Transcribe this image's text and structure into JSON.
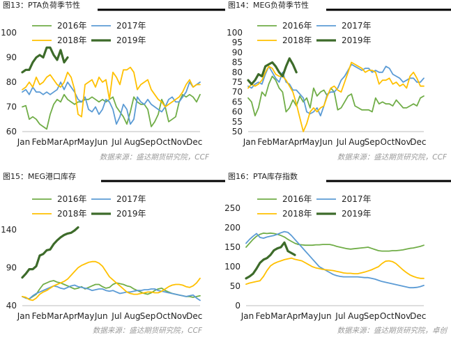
{
  "colors": {
    "y2016": "#70ad47",
    "y2017": "#5b9bd5",
    "y2018": "#ffc000",
    "y2019": "#3d6b2a"
  },
  "chart_data": [
    {
      "id": "pta-load",
      "type": "line",
      "title": "图13：PTA负荷季节性",
      "source": "数据来源：盛达期货研究院，CCF",
      "ylim": [
        60,
        100
      ],
      "yticks": [
        60,
        70,
        80,
        90,
        100
      ],
      "xticklabels": [
        "Jan",
        "Feb",
        "Mar",
        "Apr",
        "May",
        "Jun",
        "Jul",
        "Aug",
        "Sep",
        "Oct",
        "Nov",
        "Dec"
      ],
      "x_range": [
        1,
        52
      ],
      "legend": "top",
      "series": [
        {
          "name": "2016年",
          "color_key": "y2016",
          "width": 1.8,
          "values": [
            70,
            70.5,
            65,
            66,
            65,
            63,
            62,
            61,
            67,
            71,
            73,
            72,
            75,
            73,
            72,
            71,
            72,
            72,
            73,
            73,
            74,
            73,
            72,
            73,
            72,
            73,
            74,
            70,
            68,
            66,
            63,
            68,
            74,
            72,
            71,
            71,
            69,
            62,
            64,
            67,
            73,
            70,
            64,
            65,
            66,
            72,
            75,
            74,
            75,
            74,
            72,
            75
          ]
        },
        {
          "name": "2017年",
          "color_key": "y2017",
          "width": 1.8,
          "values": [
            76,
            77,
            75,
            78,
            76,
            76,
            75,
            76,
            75,
            76,
            77,
            80,
            77,
            80,
            78,
            76,
            73,
            72,
            74,
            69,
            68,
            70,
            67,
            69,
            73,
            72,
            69,
            63,
            66,
            71,
            69,
            63,
            65,
            74,
            72,
            71,
            73,
            71,
            70,
            69,
            68,
            70,
            73,
            74,
            72,
            72,
            74,
            76,
            80,
            78,
            79,
            80
          ]
        },
        {
          "name": "2018年",
          "color_key": "y2018",
          "width": 1.8,
          "values": [
            77,
            78,
            80,
            78,
            82,
            79,
            80,
            82,
            83,
            81,
            79,
            78,
            80,
            84,
            82,
            77,
            67,
            66,
            79,
            80,
            81,
            78,
            82,
            80,
            81,
            73,
            84,
            82,
            79,
            85,
            85,
            86,
            84,
            77,
            79,
            80,
            81,
            77,
            75,
            73,
            72,
            70,
            71,
            72,
            73,
            74,
            76,
            79,
            81,
            78,
            79,
            79
          ]
        },
        {
          "name": "2019年",
          "color_key": "y2019",
          "width": 3.2,
          "values": [
            84,
            85,
            85,
            88,
            90,
            91,
            90,
            94,
            94,
            91,
            89,
            93,
            88,
            90
          ]
        }
      ]
    },
    {
      "id": "meg-load",
      "type": "line",
      "title": "图14：MEG负荷季节性",
      "source": "数据来源：盛达期货研究院，CCF",
      "ylim": [
        50,
        100
      ],
      "yticks": [
        50,
        55,
        60,
        65,
        70,
        75,
        80,
        85,
        90,
        95,
        100
      ],
      "xticklabels": [
        "Jan",
        "Feb",
        "Mar",
        "Apr",
        "May",
        "Jun",
        "Jul",
        "Aug",
        "Sep",
        "Oct",
        "Nov",
        "Dec"
      ],
      "x_range": [
        1,
        52
      ],
      "legend": "top",
      "series": [
        {
          "name": "2016年",
          "color_key": "y2016",
          "width": 1.8,
          "values": [
            67,
            65,
            58,
            62,
            70,
            68,
            74,
            78,
            76,
            72,
            70,
            60,
            62,
            66,
            63,
            68,
            65,
            67,
            62,
            72,
            68,
            70,
            71,
            68,
            72,
            70,
            61,
            62,
            65,
            68,
            69,
            63,
            62,
            61,
            61,
            61,
            60,
            67,
            64,
            65,
            64,
            64,
            63,
            66,
            64,
            62,
            62,
            63,
            64,
            63,
            67,
            68
          ]
        },
        {
          "name": "2017年",
          "color_key": "y2017",
          "width": 1.8,
          "values": [
            73,
            72,
            74,
            75,
            74,
            79,
            83,
            80,
            77,
            75,
            80,
            75,
            74,
            71,
            71,
            69,
            67,
            60,
            59,
            60,
            62,
            58,
            63,
            69,
            70,
            70,
            72,
            76,
            78,
            81,
            84,
            83,
            82,
            81,
            82,
            82,
            80,
            81,
            80,
            80,
            83,
            82,
            79,
            78,
            77,
            75,
            76,
            77,
            77,
            75,
            75,
            77
          ]
        },
        {
          "name": "2018年",
          "color_key": "y2018",
          "width": 1.8,
          "values": [
            72,
            74,
            73,
            74,
            76,
            80,
            83,
            82,
            79,
            78,
            78,
            76,
            73,
            70,
            64,
            57,
            50,
            54,
            60,
            62,
            60,
            62,
            63,
            68,
            72,
            73,
            71,
            70,
            75,
            80,
            85,
            84,
            83,
            82,
            80,
            81,
            81,
            80,
            74,
            76,
            76,
            77,
            74,
            75,
            73,
            74,
            72,
            78,
            80,
            77,
            73,
            73
          ]
        },
        {
          "name": "2019年",
          "color_key": "y2019",
          "width": 3.2,
          "values": [
            76,
            74,
            76,
            79,
            78,
            83,
            84,
            85,
            83,
            80,
            78,
            83,
            87,
            84,
            80
          ]
        }
      ]
    },
    {
      "id": "meg-port-stock",
      "type": "line",
      "title": "图15：MEG港口库存",
      "source": "数据来源：盛达期货研究院，CCF",
      "ylim": [
        40,
        150
      ],
      "yticks": [
        40,
        90,
        140
      ],
      "xticklabels": [
        "Jan",
        "Feb",
        "Mar",
        "Apr",
        "May",
        "Jun",
        "Jul",
        "Aug",
        "Sep",
        "Oct",
        "Nov",
        "Dec"
      ],
      "x_range": [
        1,
        52
      ],
      "legend": "top",
      "series": [
        {
          "name": "2016年",
          "color_key": "y2016",
          "width": 1.8,
          "values": [
            52,
            50,
            49,
            52,
            55,
            62,
            68,
            70,
            72,
            73,
            71,
            70,
            68,
            66,
            64,
            62,
            63,
            65,
            62,
            64,
            66,
            68,
            68,
            65,
            63,
            64,
            68,
            70,
            69,
            68,
            66,
            65,
            62,
            60,
            58,
            56,
            55,
            57,
            60,
            62,
            63,
            60,
            58,
            56,
            55,
            54,
            53,
            52,
            52,
            51,
            52,
            53
          ]
        },
        {
          "name": "2017年",
          "color_key": "y2017",
          "width": 1.8,
          "values": [
            52,
            50,
            49,
            53,
            56,
            58,
            60,
            62,
            64,
            66,
            65,
            63,
            62,
            64,
            66,
            67,
            65,
            64,
            63,
            62,
            60,
            61,
            62,
            62,
            60,
            59,
            60,
            58,
            56,
            57,
            58,
            58,
            59,
            60,
            60,
            61,
            61,
            62,
            62,
            60,
            59,
            58,
            57,
            56,
            55,
            54,
            53,
            52,
            53,
            54,
            50,
            47
          ]
        },
        {
          "name": "2018年",
          "color_key": "y2018",
          "width": 1.8,
          "values": [
            52,
            51,
            48,
            47,
            50,
            55,
            58,
            60,
            63,
            66,
            68,
            70,
            72,
            75,
            80,
            85,
            90,
            93,
            95,
            97,
            98,
            98,
            96,
            92,
            85,
            78,
            74,
            70,
            66,
            62,
            58,
            56,
            55,
            55,
            56,
            57,
            58,
            58,
            57,
            57,
            59,
            62,
            65,
            67,
            68,
            68,
            67,
            65,
            64,
            66,
            70,
            76
          ]
        },
        {
          "name": "2019年",
          "color_key": "y2019",
          "width": 3.2,
          "values": [
            77,
            82,
            88,
            88,
            92,
            106,
            108,
            113,
            114,
            121,
            126,
            130,
            133,
            135,
            136,
            139,
            143
          ]
        }
      ]
    },
    {
      "id": "pta-stock-index",
      "type": "line",
      "title": "图16：PTA库存指数",
      "source": "数据来源：盛达期货研究院，卓创",
      "ylim": [
        0,
        250
      ],
      "yticks": [
        0,
        50,
        100,
        150,
        200,
        250
      ],
      "xticklabels": [
        "Jan",
        "Feb",
        "Mar",
        "Apr",
        "May",
        "Jun",
        "Jul",
        "Aug",
        "Sep",
        "Oct",
        "Nov",
        "Dec"
      ],
      "x_range": [
        1,
        52
      ],
      "legend": "top",
      "series": [
        {
          "name": "2016年",
          "color_key": "y2016",
          "width": 1.8,
          "values": [
            150,
            160,
            170,
            178,
            183,
            186,
            185,
            186,
            185,
            183,
            180,
            176,
            170,
            165,
            160,
            157,
            156,
            155,
            155,
            155,
            156,
            156,
            157,
            157,
            157,
            155,
            152,
            150,
            148,
            146,
            145,
            146,
            147,
            148,
            149,
            150,
            147,
            144,
            141,
            140,
            140,
            140,
            141,
            141,
            142,
            143,
            145,
            147,
            148,
            150,
            152,
            155
          ]
        },
        {
          "name": "2017年",
          "color_key": "y2017",
          "width": 1.8,
          "values": [
            160,
            170,
            178,
            185,
            175,
            173,
            176,
            178,
            180,
            183,
            187,
            190,
            188,
            180,
            170,
            160,
            150,
            140,
            130,
            120,
            110,
            100,
            95,
            90,
            85,
            80,
            77,
            75,
            74,
            74,
            74,
            74,
            74,
            73,
            72,
            72,
            70,
            68,
            65,
            62,
            60,
            58,
            56,
            54,
            52,
            50,
            48,
            46,
            46,
            47,
            49,
            52
          ]
        },
        {
          "name": "2018年",
          "color_key": "y2018",
          "width": 1.8,
          "values": [
            55,
            58,
            60,
            62,
            64,
            75,
            90,
            102,
            108,
            112,
            115,
            118,
            120,
            122,
            119,
            117,
            115,
            110,
            105,
            100,
            97,
            95,
            93,
            92,
            91,
            90,
            88,
            86,
            84,
            83,
            83,
            82,
            82,
            84,
            86,
            89,
            92,
            96,
            100,
            108,
            114,
            115,
            113,
            108,
            100,
            92,
            85,
            79,
            75,
            72,
            70,
            70
          ]
        },
        {
          "name": "2019年",
          "color_key": "y2019",
          "width": 3.2,
          "values": [
            70,
            75,
            82,
            95,
            110,
            118,
            122,
            130,
            142,
            147,
            150,
            162,
            140,
            135,
            130
          ]
        }
      ]
    }
  ]
}
